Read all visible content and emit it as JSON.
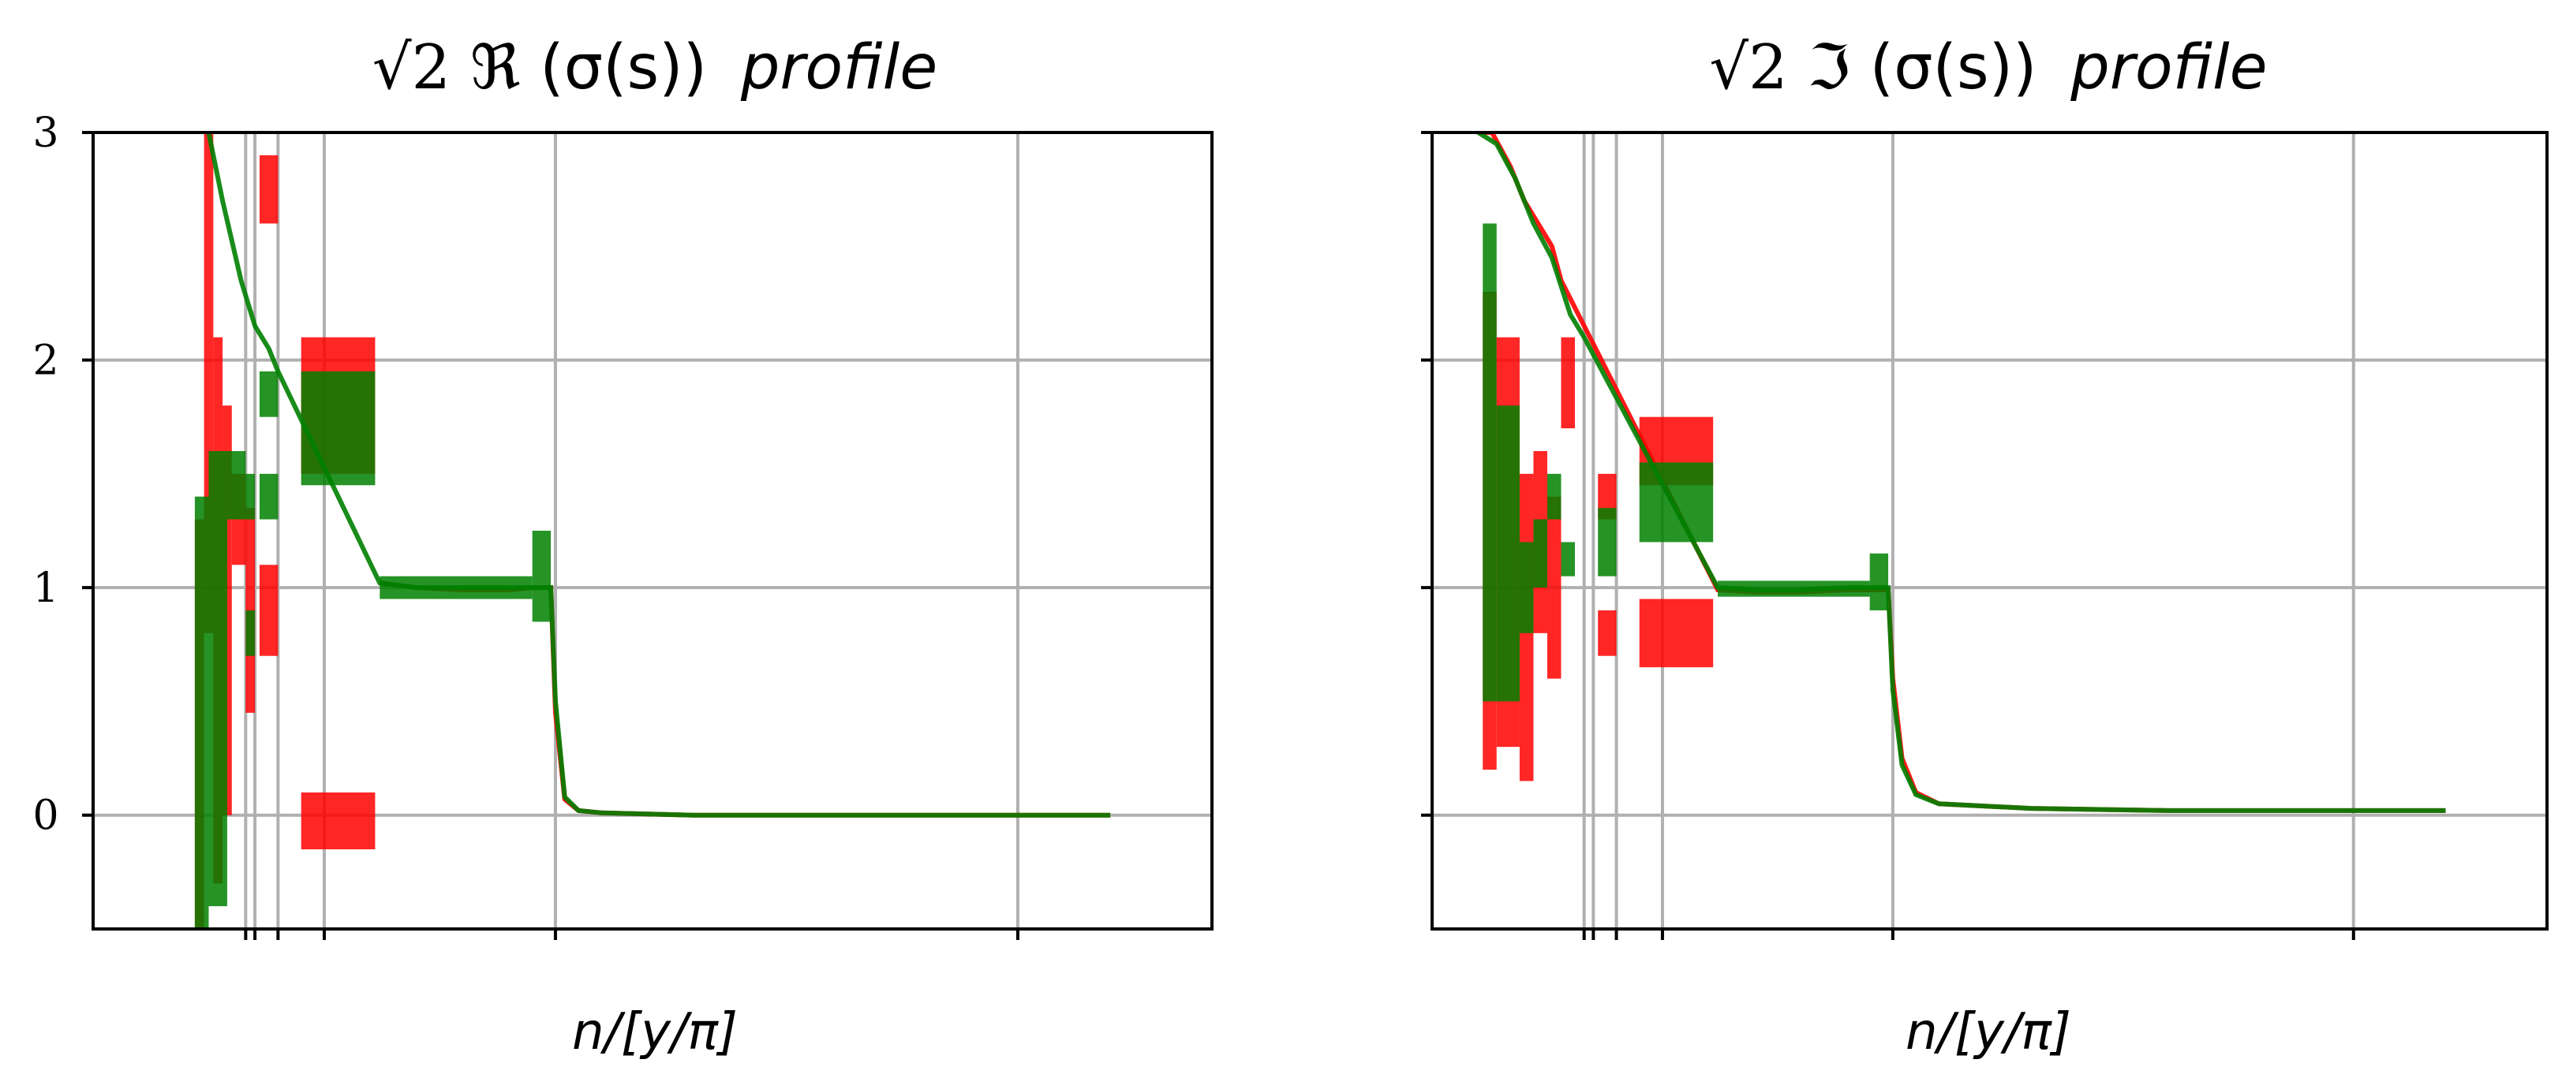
{
  "chart_data": [
    {
      "type": "line",
      "title_prefix": "√2",
      "title_symbol": "ℜ",
      "title_args": "(σ(s))",
      "title_suffix": "profile",
      "xlabel": "n/[y/π]",
      "ylabel": "",
      "ylim": [
        -0.5,
        3
      ],
      "yticks": [
        0,
        1,
        2,
        3
      ],
      "ytick_labels": [
        "0",
        "1",
        "2",
        "3"
      ],
      "xticks": [
        0.33,
        0.35,
        0.4,
        0.5,
        1.0,
        2.0
      ],
      "xtick_labels": [
        "",
        "",
        "",
        "",
        "",
        ""
      ],
      "xlim": [
        0,
        2.42
      ],
      "grid": true,
      "series": [
        {
          "color": "#ff0000",
          "bands": [
            {
              "x": [
                0.22,
                0.24
              ],
              "y": [
                -0.5,
                1.3
              ]
            },
            {
              "x": [
                0.24,
                0.26
              ],
              "y": [
                0.8,
                3.0
              ]
            },
            {
              "x": [
                0.26,
                0.28
              ],
              "y": [
                -0.3,
                2.1
              ]
            },
            {
              "x": [
                0.28,
                0.3
              ],
              "y": [
                0.0,
                1.8
              ]
            },
            {
              "x": [
                0.3,
                0.33
              ],
              "y": [
                1.1,
                1.5
              ]
            },
            {
              "x": [
                0.33,
                0.35
              ],
              "y": [
                0.45,
                1.35
              ]
            },
            {
              "x": [
                0.36,
                0.4
              ],
              "y": [
                0.7,
                1.1
              ]
            },
            {
              "x": [
                0.36,
                0.4
              ],
              "y": [
                2.6,
                2.9
              ]
            },
            {
              "x": [
                0.45,
                0.61
              ],
              "y": [
                -0.15,
                0.1
              ]
            },
            {
              "x": [
                0.45,
                0.61
              ],
              "y": [
                1.5,
                2.1
              ]
            }
          ],
          "path": [
            [
              0.62,
              1.02
            ],
            [
              0.7,
              1.0
            ],
            [
              0.8,
              0.99
            ],
            [
              0.9,
              0.99
            ],
            [
              0.95,
              1.0
            ],
            [
              0.99,
              1.0
            ],
            [
              1.0,
              0.45
            ],
            [
              1.02,
              0.07
            ],
            [
              1.05,
              0.02
            ],
            [
              1.1,
              0.01
            ],
            [
              1.3,
              0.0
            ],
            [
              1.6,
              0.0
            ],
            [
              2.0,
              0.0
            ],
            [
              2.2,
              0.0
            ]
          ]
        },
        {
          "color": "#008000",
          "bands": [
            {
              "x": [
                0.22,
                0.25
              ],
              "y": [
                -0.5,
                1.4
              ]
            },
            {
              "x": [
                0.25,
                0.29
              ],
              "y": [
                -0.4,
                1.6
              ]
            },
            {
              "x": [
                0.29,
                0.33
              ],
              "y": [
                1.3,
                1.6
              ]
            },
            {
              "x": [
                0.33,
                0.35
              ],
              "y": [
                0.7,
                0.9
              ]
            },
            {
              "x": [
                0.33,
                0.35
              ],
              "y": [
                1.3,
                1.5
              ]
            },
            {
              "x": [
                0.36,
                0.4
              ],
              "y": [
                1.3,
                1.5
              ]
            },
            {
              "x": [
                0.36,
                0.4
              ],
              "y": [
                1.75,
                1.95
              ]
            },
            {
              "x": [
                0.45,
                0.61
              ],
              "y": [
                1.45,
                1.95
              ]
            },
            {
              "x": [
                0.62,
                0.95
              ],
              "y": [
                0.95,
                1.05
              ]
            },
            {
              "x": [
                0.95,
                0.99
              ],
              "y": [
                0.85,
                1.25
              ]
            }
          ],
          "path": [
            [
              0.24,
              3.1
            ],
            [
              0.28,
              2.7
            ],
            [
              0.32,
              2.35
            ],
            [
              0.35,
              2.15
            ],
            [
              0.38,
              2.05
            ],
            [
              0.4,
              1.95
            ],
            [
              0.62,
              1.02
            ],
            [
              0.7,
              1.0
            ],
            [
              0.8,
              1.0
            ],
            [
              0.9,
              1.0
            ],
            [
              0.99,
              1.0
            ],
            [
              1.0,
              0.5
            ],
            [
              1.02,
              0.08
            ],
            [
              1.05,
              0.02
            ],
            [
              1.1,
              0.01
            ],
            [
              1.3,
              0.0
            ],
            [
              1.6,
              0.0
            ],
            [
              2.0,
              0.0
            ],
            [
              2.2,
              0.0
            ]
          ]
        }
      ]
    },
    {
      "type": "line",
      "title_prefix": "√2",
      "title_symbol": "ℑ",
      "title_args": "(σ(s))",
      "title_suffix": "profile",
      "xlabel": "n/[y/π]",
      "ylabel": "",
      "ylim": [
        -0.5,
        3
      ],
      "yticks": [
        0,
        1,
        2,
        3
      ],
      "ytick_labels": [
        "",
        "",
        "",
        ""
      ],
      "xticks": [
        0.33,
        0.35,
        0.4,
        0.5,
        1.0,
        2.0
      ],
      "xtick_labels": [
        "",
        "",
        "",
        "",
        "",
        ""
      ],
      "xlim": [
        0,
        2.42
      ],
      "grid": true,
      "series": [
        {
          "color": "#ff0000",
          "bands": [
            {
              "x": [
                0.11,
                0.14
              ],
              "y": [
                0.2,
                2.3
              ]
            },
            {
              "x": [
                0.14,
                0.19
              ],
              "y": [
                0.3,
                2.1
              ]
            },
            {
              "x": [
                0.19,
                0.22
              ],
              "y": [
                0.15,
                1.5
              ]
            },
            {
              "x": [
                0.22,
                0.25
              ],
              "y": [
                0.8,
                1.6
              ]
            },
            {
              "x": [
                0.25,
                0.28
              ],
              "y": [
                0.6,
                1.0
              ]
            },
            {
              "x": [
                0.25,
                0.28
              ],
              "y": [
                1.0,
                1.4
              ]
            },
            {
              "x": [
                0.28,
                0.31
              ],
              "y": [
                1.7,
                2.1
              ]
            },
            {
              "x": [
                0.36,
                0.4
              ],
              "y": [
                0.7,
                0.9
              ]
            },
            {
              "x": [
                0.36,
                0.4
              ],
              "y": [
                1.3,
                1.5
              ]
            },
            {
              "x": [
                0.45,
                0.61
              ],
              "y": [
                0.65,
                0.95
              ]
            },
            {
              "x": [
                0.45,
                0.61
              ],
              "y": [
                1.45,
                1.75
              ]
            }
          ],
          "path": [
            [
              0.1,
              3.0
            ],
            [
              0.13,
              3.0
            ],
            [
              0.17,
              2.85
            ],
            [
              0.2,
              2.7
            ],
            [
              0.23,
              2.6
            ],
            [
              0.26,
              2.5
            ],
            [
              0.28,
              2.35
            ],
            [
              0.33,
              2.15
            ],
            [
              0.62,
              0.99
            ],
            [
              0.7,
              0.98
            ],
            [
              0.8,
              0.98
            ],
            [
              0.9,
              0.99
            ],
            [
              0.99,
              0.99
            ],
            [
              1.0,
              0.6
            ],
            [
              1.02,
              0.25
            ],
            [
              1.05,
              0.1
            ],
            [
              1.1,
              0.05
            ],
            [
              1.3,
              0.03
            ],
            [
              1.6,
              0.02
            ],
            [
              2.0,
              0.02
            ],
            [
              2.2,
              0.02
            ]
          ]
        },
        {
          "color": "#008000",
          "bands": [
            {
              "x": [
                0.11,
                0.14
              ],
              "y": [
                0.5,
                2.6
              ]
            },
            {
              "x": [
                0.14,
                0.19
              ],
              "y": [
                0.5,
                1.8
              ]
            },
            {
              "x": [
                0.19,
                0.22
              ],
              "y": [
                0.8,
                1.2
              ]
            },
            {
              "x": [
                0.22,
                0.25
              ],
              "y": [
                1.0,
                1.3
              ]
            },
            {
              "x": [
                0.25,
                0.28
              ],
              "y": [
                1.3,
                1.5
              ]
            },
            {
              "x": [
                0.28,
                0.31
              ],
              "y": [
                1.05,
                1.2
              ]
            },
            {
              "x": [
                0.36,
                0.4
              ],
              "y": [
                1.05,
                1.35
              ]
            },
            {
              "x": [
                0.45,
                0.61
              ],
              "y": [
                1.2,
                1.55
              ]
            },
            {
              "x": [
                0.62,
                0.95
              ],
              "y": [
                0.96,
                1.03
              ]
            },
            {
              "x": [
                0.95,
                0.99
              ],
              "y": [
                0.9,
                1.15
              ]
            }
          ],
          "path": [
            [
              0.1,
              3.0
            ],
            [
              0.14,
              2.95
            ],
            [
              0.18,
              2.8
            ],
            [
              0.22,
              2.6
            ],
            [
              0.26,
              2.45
            ],
            [
              0.3,
              2.2
            ],
            [
              0.33,
              2.1
            ],
            [
              0.62,
              1.0
            ],
            [
              0.7,
              0.99
            ],
            [
              0.8,
              0.99
            ],
            [
              0.9,
              1.0
            ],
            [
              0.99,
              1.0
            ],
            [
              1.0,
              0.55
            ],
            [
              1.02,
              0.22
            ],
            [
              1.05,
              0.09
            ],
            [
              1.1,
              0.05
            ],
            [
              1.3,
              0.03
            ],
            [
              1.6,
              0.02
            ],
            [
              2.0,
              0.02
            ],
            [
              2.2,
              0.02
            ]
          ]
        }
      ]
    }
  ]
}
